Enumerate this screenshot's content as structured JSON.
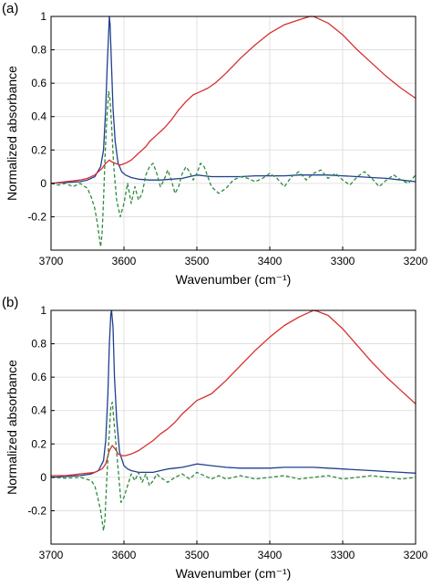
{
  "chart_data": [
    {
      "type": "line",
      "panel_label": "(a)",
      "xlabel": "Wavenumber (cm⁻¹)",
      "ylabel": "Normalized absorbance",
      "xlim": [
        3700,
        3200
      ],
      "ylim": [
        -0.4,
        1.0
      ],
      "x_reversed": true,
      "grid": true,
      "legend": "none",
      "xticks": [
        3700,
        3600,
        3500,
        3400,
        3300,
        3200
      ],
      "yticks": [
        -0.2,
        0,
        0.2,
        0.4,
        0.6,
        0.8,
        1
      ],
      "series": [
        {
          "color": "#1f3f8f",
          "style": "solid",
          "x": [
            3700,
            3680,
            3660,
            3650,
            3640,
            3632,
            3628,
            3625,
            3623,
            3621,
            3620,
            3619,
            3617,
            3615,
            3612,
            3608,
            3603,
            3598,
            3590,
            3580,
            3565,
            3550,
            3535,
            3520,
            3510,
            3500,
            3490,
            3480,
            3460,
            3440,
            3420,
            3400,
            3380,
            3360,
            3340,
            3320,
            3300,
            3280,
            3260,
            3240,
            3220,
            3200
          ],
          "y": [
            0.0,
            0.005,
            0.01,
            0.02,
            0.04,
            0.1,
            0.2,
            0.45,
            0.7,
            0.9,
            1.0,
            0.95,
            0.7,
            0.45,
            0.25,
            0.12,
            0.07,
            0.05,
            0.035,
            0.025,
            0.02,
            0.02,
            0.025,
            0.03,
            0.04,
            0.05,
            0.045,
            0.04,
            0.04,
            0.04,
            0.045,
            0.045,
            0.045,
            0.05,
            0.05,
            0.05,
            0.045,
            0.04,
            0.035,
            0.03,
            0.02,
            0.01
          ]
        },
        {
          "color": "#d62f2f",
          "style": "solid",
          "x": [
            3700,
            3680,
            3660,
            3650,
            3640,
            3630,
            3625,
            3620,
            3617,
            3612,
            3605,
            3598,
            3590,
            3580,
            3575,
            3570,
            3565,
            3555,
            3545,
            3535,
            3525,
            3515,
            3505,
            3495,
            3485,
            3475,
            3460,
            3440,
            3420,
            3400,
            3380,
            3360,
            3345,
            3340,
            3335,
            3320,
            3300,
            3280,
            3260,
            3240,
            3220,
            3200
          ],
          "y": [
            0.0,
            0.01,
            0.02,
            0.03,
            0.05,
            0.09,
            0.12,
            0.14,
            0.13,
            0.12,
            0.11,
            0.12,
            0.14,
            0.18,
            0.2,
            0.22,
            0.25,
            0.29,
            0.33,
            0.38,
            0.44,
            0.49,
            0.53,
            0.55,
            0.57,
            0.6,
            0.66,
            0.75,
            0.83,
            0.9,
            0.95,
            0.98,
            1.0,
            1.0,
            0.99,
            0.96,
            0.89,
            0.8,
            0.72,
            0.64,
            0.57,
            0.51
          ]
        },
        {
          "color": "#2e8b3e",
          "style": "dashed",
          "x": [
            3700,
            3690,
            3680,
            3670,
            3660,
            3650,
            3645,
            3640,
            3636,
            3632,
            3630,
            3628,
            3626,
            3624,
            3621,
            3619,
            3617,
            3614,
            3610,
            3605,
            3600,
            3595,
            3590,
            3585,
            3580,
            3575,
            3570,
            3565,
            3560,
            3555,
            3550,
            3545,
            3540,
            3535,
            3530,
            3525,
            3520,
            3515,
            3510,
            3505,
            3500,
            3495,
            3490,
            3485,
            3480,
            3470,
            3460,
            3450,
            3440,
            3430,
            3420,
            3410,
            3400,
            3390,
            3380,
            3370,
            3360,
            3350,
            3340,
            3330,
            3320,
            3310,
            3300,
            3290,
            3280,
            3270,
            3260,
            3250,
            3240,
            3230,
            3220,
            3210,
            3200
          ],
          "y": [
            0.0,
            -0.01,
            0.0,
            -0.02,
            0.0,
            -0.03,
            -0.08,
            -0.15,
            -0.25,
            -0.38,
            -0.3,
            -0.1,
            0.15,
            0.35,
            0.55,
            0.5,
            0.35,
            0.1,
            -0.1,
            -0.2,
            -0.12,
            0.0,
            -0.12,
            -0.02,
            -0.1,
            -0.06,
            0.05,
            0.1,
            0.12,
            0.06,
            -0.02,
            0.02,
            0.08,
            0.02,
            -0.06,
            -0.02,
            0.06,
            0.1,
            0.07,
            0.02,
            0.06,
            0.12,
            0.1,
            0.04,
            -0.02,
            -0.06,
            -0.03,
            0.02,
            0.04,
            0.03,
            0.01,
            0.03,
            0.06,
            0.03,
            -0.02,
            0.04,
            0.07,
            0.02,
            0.06,
            0.08,
            0.03,
            0.06,
            0.02,
            -0.01,
            0.04,
            0.07,
            0.03,
            -0.02,
            0.02,
            0.05,
            0.02,
            0.0,
            0.05
          ]
        }
      ]
    },
    {
      "type": "line",
      "panel_label": "(b)",
      "xlabel": "Wavenumber (cm⁻¹)",
      "ylabel": "Normalized absorbance",
      "xlim": [
        3700,
        3200
      ],
      "ylim": [
        -0.4,
        1.0
      ],
      "x_reversed": true,
      "grid": true,
      "legend": "none",
      "xticks": [
        3700,
        3600,
        3500,
        3400,
        3300,
        3200
      ],
      "yticks": [
        -0.2,
        0,
        0.2,
        0.4,
        0.6,
        0.8,
        1
      ],
      "series": [
        {
          "color": "#1f3f8f",
          "style": "solid",
          "x": [
            3700,
            3680,
            3660,
            3645,
            3635,
            3628,
            3625,
            3622,
            3620,
            3618,
            3617,
            3615,
            3613,
            3610,
            3606,
            3600,
            3595,
            3590,
            3580,
            3570,
            3560,
            3550,
            3540,
            3530,
            3520,
            3510,
            3500,
            3490,
            3480,
            3460,
            3440,
            3420,
            3400,
            3380,
            3360,
            3340,
            3320,
            3300,
            3280,
            3260,
            3240,
            3220,
            3200
          ],
          "y": [
            0.0,
            0.005,
            0.01,
            0.02,
            0.04,
            0.1,
            0.22,
            0.5,
            0.8,
            0.98,
            1.0,
            0.9,
            0.6,
            0.35,
            0.15,
            0.07,
            0.05,
            0.04,
            0.03,
            0.03,
            0.03,
            0.04,
            0.05,
            0.055,
            0.06,
            0.07,
            0.08,
            0.075,
            0.07,
            0.06,
            0.055,
            0.055,
            0.055,
            0.06,
            0.06,
            0.06,
            0.055,
            0.05,
            0.045,
            0.04,
            0.035,
            0.03,
            0.025
          ]
        },
        {
          "color": "#d62f2f",
          "style": "solid",
          "x": [
            3700,
            3680,
            3660,
            3640,
            3630,
            3625,
            3620,
            3616,
            3612,
            3608,
            3603,
            3598,
            3590,
            3580,
            3570,
            3560,
            3550,
            3540,
            3530,
            3520,
            3510,
            3500,
            3490,
            3480,
            3470,
            3460,
            3440,
            3420,
            3400,
            3380,
            3360,
            3345,
            3340,
            3335,
            3320,
            3300,
            3280,
            3260,
            3240,
            3220,
            3200
          ],
          "y": [
            0.01,
            0.01,
            0.02,
            0.03,
            0.05,
            0.08,
            0.16,
            0.19,
            0.17,
            0.14,
            0.13,
            0.13,
            0.14,
            0.16,
            0.19,
            0.22,
            0.26,
            0.29,
            0.33,
            0.38,
            0.42,
            0.46,
            0.48,
            0.5,
            0.54,
            0.58,
            0.67,
            0.76,
            0.84,
            0.91,
            0.96,
            0.99,
            1.0,
            0.995,
            0.97,
            0.89,
            0.79,
            0.69,
            0.6,
            0.52,
            0.44
          ]
        },
        {
          "color": "#2e8b3e",
          "style": "dashed",
          "x": [
            3700,
            3680,
            3660,
            3645,
            3640,
            3636,
            3632,
            3628,
            3626,
            3624,
            3621,
            3618,
            3616,
            3612,
            3608,
            3604,
            3600,
            3595,
            3590,
            3585,
            3580,
            3575,
            3570,
            3565,
            3560,
            3555,
            3550,
            3540,
            3530,
            3520,
            3510,
            3500,
            3490,
            3480,
            3470,
            3460,
            3450,
            3440,
            3420,
            3400,
            3380,
            3360,
            3340,
            3320,
            3300,
            3280,
            3260,
            3240,
            3220,
            3200
          ],
          "y": [
            0.0,
            -0.005,
            0.0,
            -0.02,
            -0.05,
            -0.12,
            -0.2,
            -0.32,
            -0.25,
            -0.05,
            0.2,
            0.42,
            0.45,
            0.25,
            0.05,
            -0.15,
            -0.12,
            -0.05,
            0.02,
            -0.02,
            0.03,
            -0.03,
            0.02,
            -0.05,
            -0.02,
            0.02,
            0.0,
            -0.03,
            0.0,
            0.02,
            -0.01,
            0.03,
            0.01,
            -0.01,
            0.01,
            -0.01,
            0.0,
            0.01,
            -0.01,
            0.0,
            0.01,
            -0.01,
            0.0,
            0.01,
            -0.01,
            0.0,
            0.01,
            0.0,
            -0.01,
            0.0
          ]
        }
      ]
    }
  ]
}
